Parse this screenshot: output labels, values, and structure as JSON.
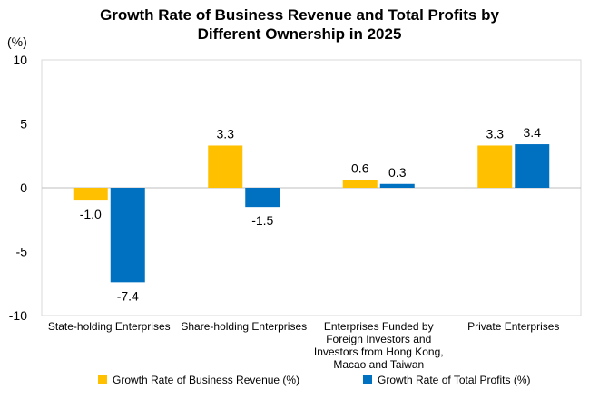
{
  "chart_data": {
    "type": "bar",
    "title_lines": [
      "Growth Rate of Business Revenue and Total Profits by",
      "Different Ownership in 2025"
    ],
    "unit_label": "(%)",
    "categories": [
      [
        "State-holding Enterprises"
      ],
      [
        "Share-holding Enterprises"
      ],
      [
        "Enterprises Funded by",
        "Foreign Investors and",
        "Investors from Hong Kong,",
        "Macao and Taiwan"
      ],
      [
        "Private Enterprises"
      ]
    ],
    "series": [
      {
        "name": "Growth Rate of Business Revenue (%)",
        "color": "#FFC000",
        "values": [
          -1.0,
          3.3,
          0.6,
          3.3
        ],
        "labels": [
          "-1.0",
          "3.3",
          "0.6",
          "3.3"
        ]
      },
      {
        "name": "Growth Rate of Total Profits (%)",
        "color": "#0070C0",
        "values": [
          -7.4,
          -1.5,
          0.3,
          3.4
        ],
        "labels": [
          "-7.4",
          "-1.5",
          "0.3",
          "3.4"
        ]
      }
    ],
    "ylim": [
      -10,
      10
    ],
    "yticks": [
      -10,
      -5,
      0,
      5,
      10
    ],
    "grid": false,
    "legend_position": "bottom"
  }
}
